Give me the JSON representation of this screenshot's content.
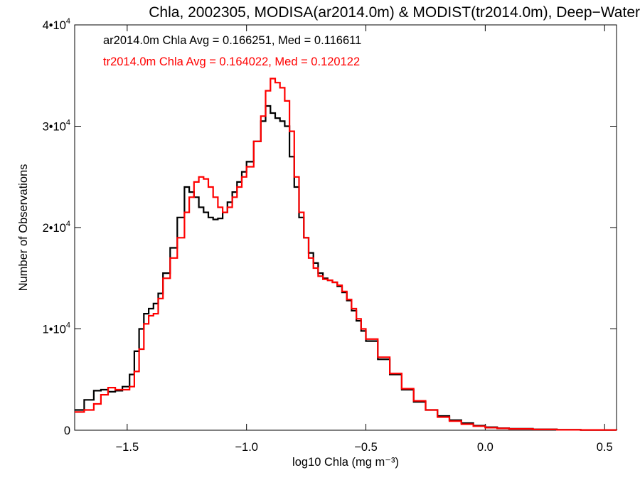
{
  "chart_data": {
    "type": "line",
    "title": "Chla, 2002305, MODISA(ar2014.0m) & MODIST(tr2014.0m), Deep−Water",
    "xlabel": "log10 Chla (mg m⁻³)",
    "ylabel": "Number of Observations",
    "xlim": [
      -1.72,
      0.55
    ],
    "ylim": [
      0,
      40000
    ],
    "x_ticks": [
      -1.5,
      -1.0,
      -0.5,
      0.0,
      0.5
    ],
    "x_tick_labels": [
      "−1.5",
      "−1.0",
      "−0.5",
      "0.0",
      "0.5"
    ],
    "y_ticks": [
      0,
      10000,
      20000,
      30000,
      40000
    ],
    "y_tick_labels": [
      {
        "mant": "0",
        "exp": ""
      },
      {
        "mant": "1•10",
        "exp": "4"
      },
      {
        "mant": "2•10",
        "exp": "4"
      },
      {
        "mant": "3•10",
        "exp": "4"
      },
      {
        "mant": "4•10",
        "exp": "4"
      }
    ],
    "grid": false,
    "annotations": [
      {
        "text": "ar2014.0m Chla Avg = 0.166251, Med = 0.116611",
        "color": "#000000"
      },
      {
        "text": "tr2014.0m Chla Avg = 0.164022, Med = 0.120122",
        "color": "#ff0000"
      }
    ],
    "series": [
      {
        "color": "#000000",
        "x": [
          -1.72,
          -1.68,
          -1.64,
          -1.61,
          -1.58,
          -1.55,
          -1.52,
          -1.49,
          -1.47,
          -1.45,
          -1.43,
          -1.41,
          -1.39,
          -1.37,
          -1.35,
          -1.32,
          -1.29,
          -1.26,
          -1.24,
          -1.22,
          -1.2,
          -1.18,
          -1.16,
          -1.14,
          -1.12,
          -1.1,
          -1.08,
          -1.06,
          -1.04,
          -1.02,
          -1.0,
          -0.97,
          -0.94,
          -0.92,
          -0.9,
          -0.88,
          -0.86,
          -0.84,
          -0.82,
          -0.8,
          -0.78,
          -0.76,
          -0.74,
          -0.72,
          -0.7,
          -0.68,
          -0.66,
          -0.64,
          -0.62,
          -0.6,
          -0.58,
          -0.56,
          -0.54,
          -0.52,
          -0.5,
          -0.45,
          -0.4,
          -0.35,
          -0.3,
          -0.25,
          -0.2,
          -0.15,
          -0.1,
          -0.05,
          0.0,
          0.05,
          0.1,
          0.2,
          0.3,
          0.4,
          0.5,
          0.55
        ],
        "y": [
          2000,
          3000,
          3900,
          4000,
          3800,
          3900,
          4300,
          5500,
          7800,
          10000,
          11500,
          12000,
          12500,
          13500,
          15500,
          18000,
          21000,
          24000,
          23500,
          23000,
          22000,
          21500,
          21000,
          20800,
          20900,
          21500,
          22500,
          23500,
          24500,
          25500,
          26500,
          28500,
          30500,
          32000,
          31300,
          30800,
          30500,
          30000,
          27000,
          24000,
          21000,
          19000,
          17500,
          16500,
          15500,
          15000,
          14800,
          14600,
          14200,
          13600,
          12800,
          11800,
          10800,
          9800,
          8800,
          7000,
          5500,
          4000,
          2800,
          2000,
          1400,
          1000,
          700,
          450,
          300,
          200,
          150,
          90,
          50,
          30,
          20,
          15
        ]
      },
      {
        "color": "#ff0000",
        "x": [
          -1.72,
          -1.68,
          -1.64,
          -1.61,
          -1.58,
          -1.55,
          -1.52,
          -1.49,
          -1.47,
          -1.45,
          -1.43,
          -1.41,
          -1.39,
          -1.37,
          -1.35,
          -1.32,
          -1.29,
          -1.26,
          -1.24,
          -1.22,
          -1.2,
          -1.18,
          -1.16,
          -1.14,
          -1.12,
          -1.1,
          -1.08,
          -1.06,
          -1.04,
          -1.02,
          -1.0,
          -0.97,
          -0.94,
          -0.92,
          -0.9,
          -0.88,
          -0.86,
          -0.84,
          -0.82,
          -0.8,
          -0.78,
          -0.76,
          -0.74,
          -0.72,
          -0.7,
          -0.68,
          -0.66,
          -0.64,
          -0.62,
          -0.6,
          -0.58,
          -0.56,
          -0.54,
          -0.52,
          -0.5,
          -0.45,
          -0.4,
          -0.35,
          -0.3,
          -0.25,
          -0.2,
          -0.15,
          -0.1,
          -0.05,
          0.0,
          0.05,
          0.1,
          0.2,
          0.3,
          0.4,
          0.5,
          0.55
        ],
        "y": [
          1800,
          2000,
          2600,
          3500,
          4200,
          4000,
          4000,
          4300,
          5800,
          8000,
          10500,
          11300,
          11500,
          13000,
          15000,
          17000,
          19000,
          21500,
          23000,
          24500,
          25000,
          24800,
          24000,
          23000,
          22000,
          21500,
          22000,
          23000,
          24000,
          25000,
          26000,
          28500,
          31000,
          33500,
          34700,
          34300,
          33800,
          32500,
          29500,
          25000,
          21500,
          19000,
          17000,
          16000,
          15200,
          14900,
          14800,
          14600,
          14300,
          13700,
          12900,
          12000,
          11000,
          10000,
          9000,
          7200,
          5600,
          4100,
          2900,
          2000,
          1300,
          900,
          600,
          400,
          250,
          180,
          130,
          80,
          45,
          28,
          18,
          12
        ]
      }
    ]
  }
}
